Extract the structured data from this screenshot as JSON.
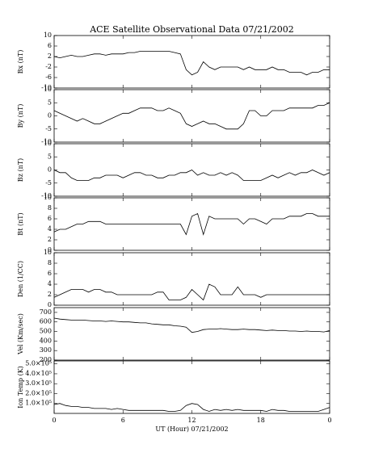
{
  "chart_data": [
    {
      "type": "line",
      "title": "ACE Satellite Observational Data   07/21/2002",
      "ylabel": "Bx (nT)",
      "ylim": [
        -10,
        10
      ],
      "yticks": [
        -10,
        -6,
        -2,
        2,
        6,
        10
      ],
      "color": "#000000",
      "x": [
        0,
        0.5,
        1,
        1.5,
        2,
        2.5,
        3,
        3.5,
        4,
        4.5,
        5,
        5.5,
        6,
        6.5,
        7,
        7.5,
        8,
        8.5,
        9,
        9.5,
        10,
        10.5,
        11,
        11.5,
        12,
        12.5,
        13,
        13.5,
        14,
        14.5,
        15,
        15.5,
        16,
        16.5,
        17,
        17.5,
        18,
        18.5,
        19,
        19.5,
        20,
        20.5,
        21,
        21.5,
        22,
        22.5,
        23,
        23.5,
        24
      ],
      "values": [
        2,
        1.5,
        2,
        2.5,
        2,
        2,
        2.5,
        3,
        3,
        2.5,
        3,
        3,
        3,
        3.5,
        3.5,
        4,
        4,
        4,
        4,
        4,
        4,
        3.5,
        3,
        -3,
        -5,
        -4,
        0,
        -2,
        -3,
        -2,
        -2,
        -2,
        -2,
        -3,
        -2,
        -3,
        -3,
        -3,
        -2,
        -3,
        -3,
        -4,
        -4,
        -4,
        -5,
        -4,
        -4,
        -3,
        -3
      ]
    },
    {
      "type": "line",
      "ylabel": "By (nT)",
      "ylim": [
        -10,
        10
      ],
      "yticks": [
        -10,
        -5,
        0,
        5,
        10
      ],
      "color": "#000000",
      "x": [
        0,
        0.5,
        1,
        1.5,
        2,
        2.5,
        3,
        3.5,
        4,
        4.5,
        5,
        5.5,
        6,
        6.5,
        7,
        7.5,
        8,
        8.5,
        9,
        9.5,
        10,
        10.5,
        11,
        11.5,
        12,
        12.5,
        13,
        13.5,
        14,
        14.5,
        15,
        15.5,
        16,
        16.5,
        17,
        17.5,
        18,
        18.5,
        19,
        19.5,
        20,
        20.5,
        21,
        21.5,
        22,
        22.5,
        23,
        23.5,
        24
      ],
      "values": [
        2,
        1,
        0,
        -1,
        -2,
        -1,
        -2,
        -3,
        -3,
        -2,
        -1,
        0,
        1,
        1,
        2,
        3,
        3,
        3,
        2,
        2,
        3,
        2,
        1,
        -3,
        -4,
        -3,
        -2,
        -3,
        -3,
        -4,
        -5,
        -5,
        -5,
        -3,
        2,
        2,
        0,
        0,
        2,
        2,
        2,
        3,
        3,
        3,
        3,
        3,
        4,
        4,
        5
      ]
    },
    {
      "type": "line",
      "ylabel": "Bz (nT)",
      "ylim": [
        -10,
        10
      ],
      "yticks": [
        -10,
        -5,
        0,
        5,
        10
      ],
      "color": "#000000",
      "x": [
        0,
        0.5,
        1,
        1.5,
        2,
        2.5,
        3,
        3.5,
        4,
        4.5,
        5,
        5.5,
        6,
        6.5,
        7,
        7.5,
        8,
        8.5,
        9,
        9.5,
        10,
        10.5,
        11,
        11.5,
        12,
        12.5,
        13,
        13.5,
        14,
        14.5,
        15,
        15.5,
        16,
        16.5,
        17,
        17.5,
        18,
        18.5,
        19,
        19.5,
        20,
        20.5,
        21,
        21.5,
        22,
        22.5,
        23,
        23.5,
        24
      ],
      "values": [
        0,
        -1,
        -1,
        -3,
        -4,
        -4,
        -4,
        -3,
        -3,
        -2,
        -2,
        -2,
        -3,
        -2,
        -1,
        -1,
        -2,
        -2,
        -3,
        -3,
        -2,
        -2,
        -1,
        -1,
        0,
        -2,
        -1,
        -2,
        -2,
        -1,
        -2,
        -1,
        -2,
        -4,
        -4,
        -4,
        -4,
        -3,
        -2,
        -3,
        -2,
        -1,
        -2,
        -1,
        -1,
        0,
        -1,
        -2,
        -1
      ]
    },
    {
      "type": "line",
      "ylabel": "Bt (nT)",
      "ylim": [
        0,
        10
      ],
      "yticks": [
        0,
        2,
        4,
        6,
        8,
        10
      ],
      "color": "#000000",
      "x": [
        0,
        0.5,
        1,
        1.5,
        2,
        2.5,
        3,
        3.5,
        4,
        4.5,
        5,
        5.5,
        6,
        6.5,
        7,
        7.5,
        8,
        8.5,
        9,
        9.5,
        10,
        10.5,
        11,
        11.5,
        12,
        12.5,
        13,
        13.5,
        14,
        14.5,
        15,
        15.5,
        16,
        16.5,
        17,
        17.5,
        18,
        18.5,
        19,
        19.5,
        20,
        20.5,
        21,
        21.5,
        22,
        22.5,
        23,
        23.5,
        24
      ],
      "values": [
        3.5,
        4,
        4,
        4.5,
        5,
        5,
        5.5,
        5.5,
        5.5,
        5,
        5,
        5,
        5,
        5,
        5,
        5,
        5,
        5,
        5,
        5,
        5,
        5,
        5,
        3,
        6.5,
        7,
        3,
        6.5,
        6,
        6,
        6,
        6,
        6,
        5,
        6,
        6,
        5.5,
        5,
        6,
        6,
        6,
        6.5,
        6.5,
        6.5,
        7,
        7,
        6.5,
        6.5,
        6.5
      ]
    },
    {
      "type": "line",
      "ylabel": "Den (1/CC)",
      "ylim": [
        0,
        10
      ],
      "yticks": [
        0,
        2,
        4,
        6,
        8,
        10
      ],
      "color": "#000000",
      "x": [
        0,
        0.5,
        1,
        1.5,
        2,
        2.5,
        3,
        3.5,
        4,
        4.5,
        5,
        5.5,
        6,
        6.5,
        7,
        7.5,
        8,
        8.5,
        9,
        9.5,
        10,
        10.5,
        11,
        11.5,
        12,
        12.5,
        13,
        13.5,
        14,
        14.5,
        15,
        15.5,
        16,
        16.5,
        17,
        17.5,
        18,
        18.5,
        19,
        19.5,
        20,
        20.5,
        21,
        21.5,
        22,
        22.5,
        23,
        23.5,
        24
      ],
      "values": [
        1.5,
        2,
        2.5,
        3,
        3,
        3,
        2.5,
        3,
        3,
        2.5,
        2.5,
        2,
        2,
        2,
        2,
        2,
        2,
        2,
        2.5,
        2.5,
        1,
        1,
        1,
        1.5,
        3,
        2,
        1,
        4,
        3.5,
        2,
        2,
        2,
        3.5,
        2,
        2,
        2,
        1.5,
        2,
        2,
        2,
        2,
        2,
        2,
        2,
        2,
        2,
        2,
        2,
        2
      ]
    },
    {
      "type": "line",
      "ylabel": "Vel (Km/sec)",
      "ylim": [
        200,
        750
      ],
      "yticks": [
        200,
        300,
        400,
        500,
        600,
        700
      ],
      "color": "#000000",
      "x": [
        0,
        0.5,
        1,
        1.5,
        2,
        2.5,
        3,
        3.5,
        4,
        4.5,
        5,
        5.5,
        6,
        6.5,
        7,
        7.5,
        8,
        8.5,
        9,
        9.5,
        10,
        10.5,
        11,
        11.5,
        12,
        12.5,
        13,
        13.5,
        14,
        14.5,
        15,
        15.5,
        16,
        16.5,
        17,
        17.5,
        18,
        18.5,
        19,
        19.5,
        20,
        20.5,
        21,
        21.5,
        22,
        22.5,
        23,
        23.5,
        24
      ],
      "values": [
        640,
        630,
        625,
        620,
        620,
        620,
        615,
        610,
        610,
        605,
        610,
        605,
        600,
        600,
        595,
        590,
        590,
        580,
        575,
        570,
        570,
        560,
        555,
        545,
        490,
        500,
        520,
        525,
        525,
        530,
        525,
        520,
        520,
        525,
        520,
        520,
        515,
        510,
        515,
        510,
        510,
        505,
        505,
        500,
        505,
        500,
        500,
        495,
        510
      ]
    },
    {
      "type": "line",
      "ylabel": "Ion Temp (K)",
      "xlabel": "UT (Hour)   07/21/2002",
      "ylim": [
        0,
        530000
      ],
      "yticks": [
        {
          "value": 100000,
          "label": "1.0×10⁵"
        },
        {
          "value": 200000,
          "label": "2.0×10⁵"
        },
        {
          "value": 300000,
          "label": "3.0×10⁵"
        },
        {
          "value": 400000,
          "label": "4.0×10⁵"
        },
        {
          "value": 500000,
          "label": "5.0×10⁵"
        }
      ],
      "xlim": [
        0,
        24
      ],
      "xticks": [
        0,
        6,
        12,
        18,
        {
          "value": 24,
          "label": "0"
        }
      ],
      "color": "#000000",
      "x": [
        0,
        0.5,
        1,
        1.5,
        2,
        2.5,
        3,
        3.5,
        4,
        4.5,
        5,
        5.5,
        6,
        6.5,
        7,
        7.5,
        8,
        8.5,
        9,
        9.5,
        10,
        10.5,
        11,
        11.5,
        12,
        12.5,
        13,
        13.5,
        14,
        14.5,
        15,
        15.5,
        16,
        16.5,
        17,
        17.5,
        18,
        18.5,
        19,
        19.5,
        20,
        20.5,
        21,
        21.5,
        22,
        22.5,
        23,
        23.5,
        24
      ],
      "values": [
        90000,
        100000,
        80000,
        70000,
        70000,
        60000,
        60000,
        50000,
        50000,
        50000,
        40000,
        50000,
        40000,
        30000,
        30000,
        30000,
        30000,
        30000,
        30000,
        30000,
        20000,
        20000,
        30000,
        80000,
        100000,
        90000,
        40000,
        20000,
        40000,
        30000,
        40000,
        30000,
        40000,
        30000,
        30000,
        30000,
        30000,
        20000,
        40000,
        30000,
        30000,
        20000,
        20000,
        20000,
        20000,
        20000,
        20000,
        40000,
        60000
      ]
    }
  ]
}
